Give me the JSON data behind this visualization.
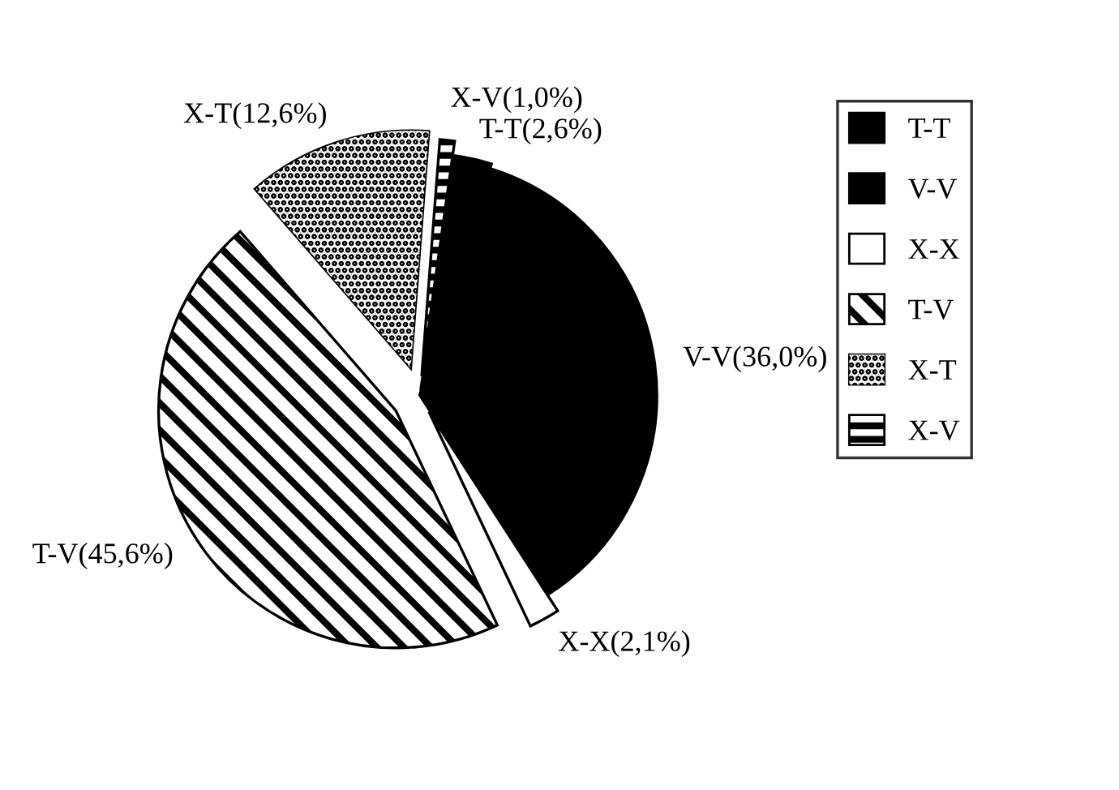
{
  "chart_data": {
    "type": "pie",
    "categories": [
      "T-T",
      "V-V",
      "X-X",
      "T-V",
      "X-T",
      "X-V"
    ],
    "values": [
      2.6,
      36.0,
      2.1,
      45.6,
      12.6,
      1.0
    ],
    "colors": [
      "#000000",
      "#000000",
      "#ffffff",
      "#ffffff",
      "#000000",
      "#ffffff"
    ],
    "value_labels": [
      "T-T(2,6%)",
      "V-V(36,0%)",
      "X-X(2,1%)",
      "T-V(45,6%)",
      "X-T(12,6%)",
      "X-V(1,0%)"
    ],
    "legend": "right"
  }
}
